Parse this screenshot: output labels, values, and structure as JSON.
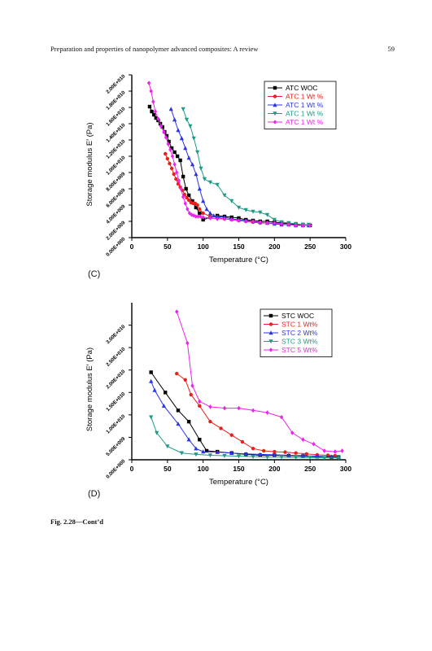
{
  "header": {
    "running_title": "Preparation and properties of nanopolymer advanced composites: A review",
    "page_number": "59"
  },
  "panels": {
    "c_label": "(C)",
    "d_label": "(D)"
  },
  "caption": "Fig. 2.28—Cont’d",
  "colors": {
    "black": "#000000",
    "red": "#e8201c",
    "blue": "#2b35e6",
    "teal": "#1e9a86",
    "magenta": "#ee22ee"
  },
  "chart_data": [
    {
      "type": "line",
      "id": "C",
      "xlabel": "Temperature (°C)",
      "ylabel": "Storage modulus E′ (Pa)",
      "xlim": [
        0,
        300
      ],
      "ylim": [
        0,
        20000000000.0
      ],
      "xticks": [
        0,
        50,
        100,
        150,
        200,
        250,
        300
      ],
      "yticks": [
        0,
        2000000000.0,
        4000000000.0,
        6000000000.0,
        8000000000.0,
        10000000000.0,
        12000000000.0,
        14000000000.0,
        16000000000.0,
        18000000000.0,
        20000000000.0
      ],
      "ytick_labels": [
        "0.00E+000",
        "2.00E+009",
        "4.00E+009",
        "6.00E+009",
        "8.00E+009",
        "1.00E+010",
        "1.20E+010",
        "1.40E+010",
        "1.60E+010",
        "1.80E+010",
        "2.00E+010"
      ],
      "legend": "top-right",
      "series": [
        {
          "name": "ATC WOC",
          "color": "#000000",
          "marker": "square",
          "x": [
            25,
            28,
            31,
            34,
            37,
            40,
            43,
            46,
            49,
            52,
            56,
            60,
            64,
            68,
            72,
            76,
            80,
            85,
            90,
            95,
            100,
            110,
            120,
            130,
            140,
            150,
            160,
            170,
            180,
            190,
            200,
            210,
            220,
            230,
            240,
            250
          ],
          "y": [
            16100000000.0,
            15500000000.0,
            15100000000.0,
            14700000000.0,
            14400000000.0,
            14000000000.0,
            13600000000.0,
            13000000000.0,
            12500000000.0,
            11800000000.0,
            11000000000.0,
            10500000000.0,
            10000000000.0,
            9500000000.0,
            7500000000.0,
            6000000000.0,
            5200000000.0,
            4500000000.0,
            3700000000.0,
            3000000000.0,
            2200000000.0,
            2500000000.0,
            2700000000.0,
            2600000000.0,
            2500000000.0,
            2400000000.0,
            2200000000.0,
            2100000000.0,
            2000000000.0,
            2000000000.0,
            1900000000.0,
            1800000000.0,
            1700000000.0,
            1600000000.0,
            1600000000.0,
            1500000000.0
          ]
        },
        {
          "name": "ATC 1 Wt %",
          "color": "#e8201c",
          "marker": "circle",
          "x": [
            47,
            50,
            53,
            56,
            59,
            62,
            65,
            68,
            71,
            74,
            77,
            80,
            83,
            86,
            89,
            92,
            95,
            100,
            110,
            120,
            130,
            140,
            150,
            160,
            170,
            180,
            190,
            200,
            210,
            220,
            230,
            240,
            248
          ],
          "y": [
            10300000000.0,
            9700000000.0,
            9100000000.0,
            8500000000.0,
            7800000000.0,
            7200000000.0,
            6600000000.0,
            6200000000.0,
            5800000000.0,
            5300000000.0,
            4900000000.0,
            4600000000.0,
            4300000000.0,
            4200000000.0,
            4200000000.0,
            4000000000.0,
            3500000000.0,
            3000000000.0,
            2600000000.0,
            2500000000.0,
            2300000000.0,
            2200000000.0,
            2100000000.0,
            2000000000.0,
            1900000000.0,
            1800000000.0,
            1800000000.0,
            1700000000.0,
            1600000000.0,
            1600000000.0,
            1500000000.0,
            1500000000.0,
            1500000000.0
          ]
        },
        {
          "name": "ATC 1 Wt %",
          "color": "#2b35e6",
          "marker": "triangle",
          "x": [
            55,
            60,
            65,
            70,
            75,
            80,
            85,
            90,
            95,
            100,
            105,
            110,
            115,
            120,
            130,
            140,
            150,
            160,
            170,
            180,
            190,
            200,
            210,
            220,
            230,
            240,
            248
          ],
          "y": [
            15800000000.0,
            14500000000.0,
            13200000000.0,
            12200000000.0,
            11000000000.0,
            9800000000.0,
            9000000000.0,
            7800000000.0,
            6000000000.0,
            4500000000.0,
            3500000000.0,
            3000000000.0,
            2700000000.0,
            2600000000.0,
            2500000000.0,
            2300000000.0,
            2200000000.0,
            2100000000.0,
            2000000000.0,
            1900000000.0,
            1800000000.0,
            1700000000.0,
            1600000000.0,
            1600000000.0,
            1500000000.0,
            1500000000.0,
            1500000000.0
          ]
        },
        {
          "name": "ATC 1 Wt %",
          "color": "#1e9a86",
          "marker": "triangle-down",
          "x": [
            72,
            77,
            82,
            87,
            92,
            97,
            102,
            110,
            120,
            130,
            140,
            150,
            160,
            170,
            180,
            190,
            200,
            210,
            220,
            230,
            240,
            248
          ],
          "y": [
            15800000000.0,
            14500000000.0,
            13700000000.0,
            12200000000.0,
            10500000000.0,
            8500000000.0,
            7200000000.0,
            6800000000.0,
            6500000000.0,
            5200000000.0,
            4500000000.0,
            3700000000.0,
            3400000000.0,
            3200000000.0,
            3100000000.0,
            2800000000.0,
            2200000000.0,
            1900000000.0,
            1800000000.0,
            1700000000.0,
            1600000000.0,
            1600000000.0
          ]
        },
        {
          "name": "ATC 1 Wt %",
          "color": "#ee22ee",
          "marker": "diamond",
          "x": [
            24,
            27,
            30,
            33,
            37,
            41,
            45,
            48,
            51,
            54,
            57,
            60,
            63,
            66,
            69,
            72,
            75,
            78,
            81,
            84,
            87,
            90,
            93,
            96,
            100,
            110,
            120,
            130,
            140,
            150,
            160,
            170,
            180,
            190,
            200,
            210,
            220,
            230,
            240,
            250
          ],
          "y": [
            19000000000.0,
            18000000000.0,
            16700000000.0,
            15500000000.0,
            14600000000.0,
            13700000000.0,
            13000000000.0,
            12300000000.0,
            11500000000.0,
            10800000000.0,
            10000000000.0,
            9000000000.0,
            8000000000.0,
            7000000000.0,
            6000000000.0,
            5000000000.0,
            4200000000.0,
            3500000000.0,
            3000000000.0,
            2800000000.0,
            2700000000.0,
            2600000000.0,
            2600000000.0,
            2600000000.0,
            2500000000.0,
            2400000000.0,
            2300000000.0,
            2300000000.0,
            2200000000.0,
            2100000000.0,
            2000000000.0,
            2000000000.0,
            1900000000.0,
            1800000000.0,
            1800000000.0,
            1700000000.0,
            1600000000.0,
            1500000000.0,
            1500000000.0,
            1500000000.0
          ]
        }
      ]
    },
    {
      "type": "line",
      "id": "D",
      "xlabel": "Temperature (°C)",
      "ylabel": "Storage modulus E′ (Pa)",
      "xlim": [
        0,
        300
      ],
      "ylim": [
        0,
        35000000000.0
      ],
      "xticks": [
        0,
        50,
        100,
        150,
        200,
        250,
        300
      ],
      "yticks": [
        0,
        5000000000.0,
        10000000000.0,
        15000000000.0,
        20000000000.0,
        25000000000.0,
        30000000000.0
      ],
      "ytick_labels": [
        "0.00E+000",
        "5.00E+009",
        "1.00E+010",
        "1.50E+010",
        "2.00E+010",
        "2.50E+010",
        "3.00E+010"
      ],
      "legend": "top-right",
      "series": [
        {
          "name": "STC WOC",
          "color": "#000000",
          "marker": "square",
          "x": [
            27,
            47,
            65,
            80,
            95,
            105,
            120,
            140,
            160,
            180,
            200,
            220,
            240,
            260,
            280,
            290
          ],
          "y": [
            19500000000.0,
            15000000000.0,
            11000000000.0,
            8500000000.0,
            4500000000.0,
            2000000000.0,
            1800000000.0,
            1500000000.0,
            1200000000.0,
            1000000000.0,
            1000000000.0,
            900000000.0,
            800000000.0,
            700000000.0,
            600000000.0,
            600000000.0
          ]
        },
        {
          "name": "STC 1 Wt%",
          "color": "#e8201c",
          "marker": "circle",
          "x": [
            63,
            75,
            83,
            95,
            110,
            125,
            140,
            155,
            170,
            185,
            200,
            215,
            230,
            245,
            260,
            275,
            285
          ],
          "y": [
            19200000000.0,
            17800000000.0,
            14500000000.0,
            12000000000.0,
            8500000000.0,
            7000000000.0,
            5500000000.0,
            4000000000.0,
            2500000000.0,
            2000000000.0,
            1800000000.0,
            1700000000.0,
            1500000000.0,
            1300000000.0,
            1100000000.0,
            1000000000.0,
            900000000.0
          ]
        },
        {
          "name": "STC 2 Wt%",
          "color": "#2b35e6",
          "marker": "triangle",
          "x": [
            27,
            32,
            45,
            65,
            80,
            90,
            100,
            120,
            140,
            160,
            180,
            200,
            220,
            240,
            260,
            280,
            290
          ],
          "y": [
            17500000000.0,
            15500000000.0,
            12000000000.0,
            8000000000.0,
            4500000000.0,
            2500000000.0,
            1800000000.0,
            1700000000.0,
            1500000000.0,
            1300000000.0,
            1200000000.0,
            1100000000.0,
            1000000000.0,
            900000000.0,
            800000000.0,
            700000000.0,
            600000000.0
          ]
        },
        {
          "name": "STC 3 Wt%",
          "color": "#1e9a86",
          "marker": "triangle-down",
          "x": [
            27,
            35,
            50,
            70,
            90,
            110,
            130,
            150,
            170,
            190,
            210,
            230,
            250,
            270,
            290
          ],
          "y": [
            9500000000.0,
            6000000000.0,
            3000000000.0,
            1500000000.0,
            1200000000.0,
            1000000000.0,
            900000000.0,
            800000000.0,
            700000000.0,
            600000000.0,
            600000000.0,
            500000000.0,
            500000000.0,
            400000000.0,
            400000000.0
          ]
        },
        {
          "name": "STC 5 Wt%",
          "color": "#ee22ee",
          "marker": "diamond",
          "x": [
            63,
            78,
            85,
            95,
            110,
            130,
            150,
            170,
            190,
            210,
            225,
            240,
            255,
            270,
            285,
            295
          ],
          "y": [
            33000000000.0,
            26000000000.0,
            16500000000.0,
            13000000000.0,
            11800000000.0,
            11500000000.0,
            11500000000.0,
            11000000000.0,
            10500000000.0,
            9500000000.0,
            6000000000.0,
            4500000000.0,
            3500000000.0,
            2000000000.0,
            1800000000.0,
            2000000000.0
          ]
        }
      ]
    }
  ]
}
